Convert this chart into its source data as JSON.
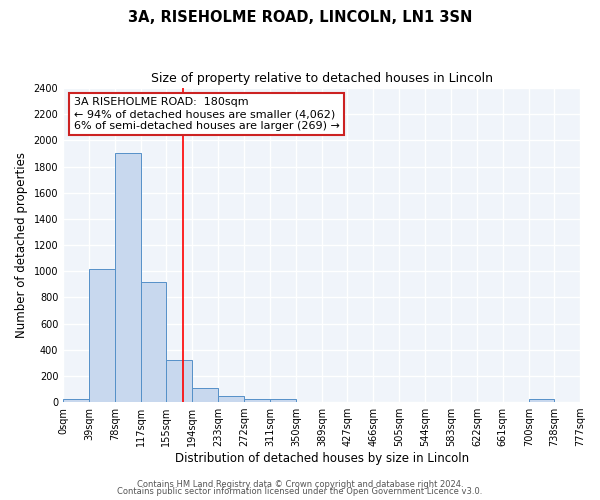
{
  "title": "3A, RISEHOLME ROAD, LINCOLN, LN1 3SN",
  "subtitle": "Size of property relative to detached houses in Lincoln",
  "xlabel": "Distribution of detached houses by size in Lincoln",
  "ylabel": "Number of detached properties",
  "bin_edges": [
    0,
    39,
    78,
    117,
    155,
    194,
    233,
    272,
    311,
    350,
    389,
    427,
    466,
    505,
    544,
    583,
    622,
    661,
    700,
    738,
    777
  ],
  "bin_labels": [
    "0sqm",
    "39sqm",
    "78sqm",
    "117sqm",
    "155sqm",
    "194sqm",
    "233sqm",
    "272sqm",
    "311sqm",
    "350sqm",
    "389sqm",
    "427sqm",
    "466sqm",
    "505sqm",
    "544sqm",
    "583sqm",
    "622sqm",
    "661sqm",
    "700sqm",
    "738sqm",
    "777sqm"
  ],
  "bar_heights": [
    20,
    1020,
    1900,
    920,
    320,
    110,
    50,
    20,
    20,
    0,
    0,
    0,
    0,
    0,
    0,
    0,
    0,
    0,
    20,
    0
  ],
  "bar_color": "#c8d8ee",
  "bar_edge_color": "#5590c8",
  "red_line_x": 180,
  "ylim": [
    0,
    2400
  ],
  "yticks": [
    0,
    200,
    400,
    600,
    800,
    1000,
    1200,
    1400,
    1600,
    1800,
    2000,
    2200,
    2400
  ],
  "annotation_line1": "3A RISEHOLME ROAD:  180sqm",
  "annotation_line2": "← 94% of detached houses are smaller (4,062)",
  "annotation_line3": "6% of semi-detached houses are larger (269) →",
  "footer_line1": "Contains HM Land Registry data © Crown copyright and database right 2024.",
  "footer_line2": "Contains public sector information licensed under the Open Government Licence v3.0.",
  "bg_color": "#ffffff",
  "plot_bg_color": "#f0f4fa",
  "grid_color": "#ffffff",
  "title_fontsize": 10.5,
  "subtitle_fontsize": 9,
  "axis_label_fontsize": 8.5,
  "tick_fontsize": 7,
  "footer_fontsize": 6,
  "annot_fontsize": 8
}
